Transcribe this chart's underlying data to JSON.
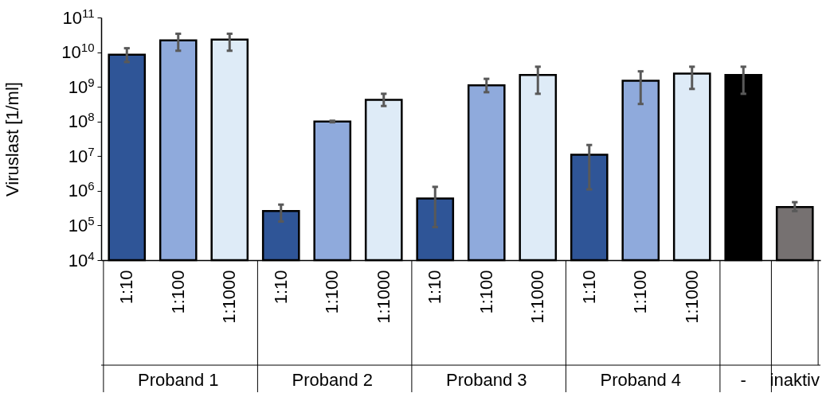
{
  "chart_data": {
    "type": "bar",
    "ylabel": "Viruslast [1/ml]",
    "log": true,
    "categories": [
      "1:10",
      "1:100",
      "1:1000",
      "1:10",
      "1:100",
      "1:1000",
      "1:10",
      "1:100",
      "1:1000",
      "1:10",
      "1:100",
      "1:1000",
      null,
      null
    ],
    "values": [
      8500000000.0,
      22000000000.0,
      23000000000.0,
      260000.0,
      100000000.0,
      420000000.0,
      600000.0,
      1100000000.0,
      2200000000.0,
      11000000.0,
      1500000000.0,
      2400000000.0,
      2200000000.0,
      340000.0
    ],
    "colors": [
      "#2f5597",
      "#8faadc",
      "#deebf7",
      "#2f5597",
      "#8faadc",
      "#deebf7",
      "#2f5597",
      "#8faadc",
      "#deebf7",
      "#2f5597",
      "#8faadc",
      "#deebf7",
      "#000000",
      "#767171"
    ],
    "errors": [
      [
        5200000000.0,
        13000000000.0
      ],
      [
        11000000000.0,
        34000000000.0
      ],
      [
        11000000000.0,
        34000000000.0
      ],
      [
        130000.0,
        400000.0
      ],
      [
        95000000.0,
        105000000.0
      ],
      [
        280000000.0,
        630000000.0
      ],
      [
        90000.0,
        1300000.0
      ],
      [
        700000000.0,
        1700000000.0
      ],
      [
        630000000.0,
        3800000000.0
      ],
      [
        1100000.0,
        21000000.0
      ],
      [
        320000000.0,
        2800000000.0
      ],
      [
        870000000.0,
        3800000000.0
      ],
      [
        630000000.0,
        3800000000.0
      ],
      [
        260000.0,
        470000.0
      ]
    ],
    "ylim": [
      10000.0,
      100000000000.0
    ],
    "yticks": [
      {
        "value": 10000.0,
        "label": "10$^{4}$"
      },
      {
        "value": 100000.0,
        "label": "10$^{5}$"
      },
      {
        "value": 1000000.0,
        "label": "10$^{6}$"
      },
      {
        "value": 10000000.0,
        "label": "10$^{7}$"
      },
      {
        "value": 100000000.0,
        "label": "10$^{8}$"
      },
      {
        "value": 1000000000.0,
        "label": "10$^{9}$"
      },
      {
        "value": 10000000000.0,
        "label": "10$^{10}$"
      },
      {
        "value": 100000000000.0,
        "label": "10$^{11}$"
      }
    ],
    "annotations": [
      "Proband 1",
      "Proband 2",
      "Proband 3",
      "Proband 4",
      "-",
      "inaktiv"
    ]
  }
}
